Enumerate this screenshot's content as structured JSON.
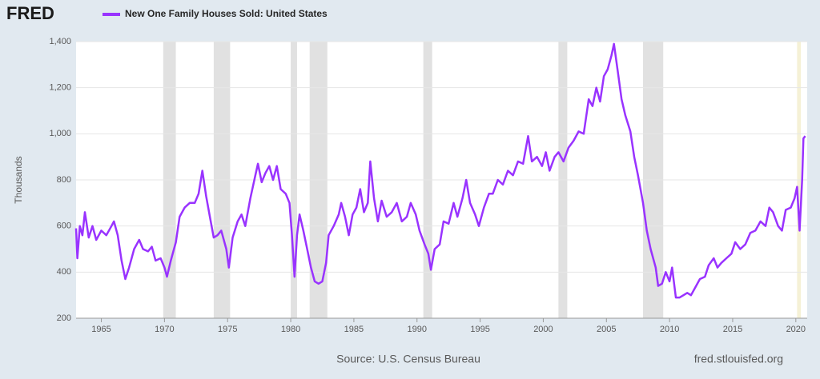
{
  "logo": "FRED",
  "chart_data": {
    "type": "line",
    "title": "New One Family Houses Sold: United States",
    "y_label": "Thousands",
    "source": "Source: U.S. Census Bureau",
    "site": "fred.stlouisfed.org",
    "xlim": [
      1963,
      2020.9
    ],
    "xticks": [
      1965,
      1970,
      1975,
      1980,
      1985,
      1990,
      1995,
      2000,
      2005,
      2010,
      2015,
      2020
    ],
    "ylim": [
      200,
      1400
    ],
    "yticks": [
      200,
      400,
      600,
      800,
      {
        "value": 1000,
        "label": "1,000"
      },
      {
        "value": 1200,
        "label": "1,200"
      },
      {
        "value": 1400,
        "label": "1,400"
      }
    ],
    "grid": true,
    "recession_color": "#e1e1e1",
    "recessions": [
      {
        "start": 1969.9,
        "end": 1970.9
      },
      {
        "start": 1973.9,
        "end": 1975.2
      },
      {
        "start": 1980.0,
        "end": 1980.5
      },
      {
        "start": 1981.5,
        "end": 1982.9
      },
      {
        "start": 1990.5,
        "end": 1991.2
      },
      {
        "start": 2001.2,
        "end": 2001.9
      },
      {
        "start": 2007.9,
        "end": 2009.5
      },
      {
        "start": 2020.1,
        "end": 2020.4,
        "color": "#f5f1d6"
      }
    ],
    "x": [
      1963.0,
      1963.1,
      1963.3,
      1963.5,
      1963.7,
      1964.0,
      1964.3,
      1964.6,
      1965.0,
      1965.4,
      1965.8,
      1966.0,
      1966.3,
      1966.6,
      1966.9,
      1967.2,
      1967.6,
      1968.0,
      1968.3,
      1968.7,
      1969.0,
      1969.3,
      1969.7,
      1970.0,
      1970.2,
      1970.5,
      1970.9,
      1971.2,
      1971.6,
      1972.0,
      1972.4,
      1972.7,
      1973.0,
      1973.3,
      1973.6,
      1973.9,
      1974.2,
      1974.5,
      1974.9,
      1975.1,
      1975.4,
      1975.8,
      1976.1,
      1976.4,
      1976.8,
      1977.2,
      1977.4,
      1977.7,
      1978.0,
      1978.3,
      1978.6,
      1978.9,
      1979.2,
      1979.6,
      1979.9,
      1980.1,
      1980.3,
      1980.5,
      1980.7,
      1981.0,
      1981.3,
      1981.6,
      1981.9,
      1982.2,
      1982.5,
      1982.8,
      1983.0,
      1983.4,
      1983.8,
      1984.0,
      1984.3,
      1984.6,
      1984.9,
      1985.2,
      1985.5,
      1985.8,
      1986.1,
      1986.3,
      1986.6,
      1986.9,
      1987.2,
      1987.6,
      1988.0,
      1988.4,
      1988.8,
      1989.2,
      1989.5,
      1989.9,
      1990.2,
      1990.6,
      1990.9,
      1991.1,
      1991.4,
      1991.8,
      1992.1,
      1992.5,
      1992.9,
      1993.2,
      1993.6,
      1993.9,
      1994.2,
      1994.6,
      1994.9,
      1995.3,
      1995.7,
      1996.0,
      1996.4,
      1996.8,
      1997.2,
      1997.6,
      1998.0,
      1998.4,
      1998.8,
      1999.1,
      1999.5,
      1999.9,
      2000.2,
      2000.5,
      2000.9,
      2001.2,
      2001.6,
      2002.0,
      2002.4,
      2002.8,
      2003.2,
      2003.6,
      2003.9,
      2004.2,
      2004.5,
      2004.8,
      2005.1,
      2005.4,
      2005.6,
      2005.9,
      2006.2,
      2006.5,
      2006.9,
      2007.2,
      2007.5,
      2007.9,
      2008.2,
      2008.5,
      2008.9,
      2009.1,
      2009.4,
      2009.7,
      2010.0,
      2010.2,
      2010.5,
      2010.8,
      2011.1,
      2011.4,
      2011.7,
      2012.0,
      2012.4,
      2012.8,
      2013.1,
      2013.5,
      2013.8,
      2014.1,
      2014.5,
      2014.9,
      2015.2,
      2015.6,
      2016.0,
      2016.4,
      2016.8,
      2017.2,
      2017.6,
      2017.9,
      2018.2,
      2018.6,
      2018.9,
      2019.2,
      2019.6,
      2019.9,
      2020.1,
      2020.3,
      2020.5,
      2020.6,
      2020.75
    ],
    "series": [
      {
        "name": "New One Family Houses Sold: United States",
        "color": "#9933ff",
        "values": [
          590,
          460,
          600,
          560,
          660,
          550,
          600,
          540,
          580,
          560,
          600,
          620,
          560,
          450,
          370,
          420,
          500,
          540,
          500,
          490,
          510,
          450,
          460,
          420,
          380,
          450,
          530,
          640,
          680,
          700,
          700,
          740,
          840,
          730,
          640,
          550,
          560,
          580,
          500,
          420,
          550,
          620,
          650,
          600,
          720,
          820,
          870,
          790,
          830,
          860,
          800,
          860,
          760,
          740,
          700,
          560,
          380,
          560,
          650,
          580,
          500,
          420,
          360,
          350,
          360,
          440,
          560,
          600,
          650,
          700,
          640,
          560,
          650,
          680,
          760,
          660,
          700,
          880,
          720,
          620,
          710,
          640,
          660,
          700,
          620,
          640,
          700,
          650,
          580,
          520,
          480,
          410,
          500,
          520,
          620,
          610,
          700,
          640,
          720,
          800,
          700,
          650,
          600,
          680,
          740,
          740,
          800,
          780,
          840,
          820,
          880,
          870,
          990,
          880,
          900,
          860,
          920,
          840,
          900,
          920,
          880,
          940,
          970,
          1010,
          1000,
          1150,
          1120,
          1200,
          1140,
          1250,
          1280,
          1340,
          1390,
          1270,
          1150,
          1080,
          1010,
          900,
          820,
          700,
          580,
          500,
          420,
          340,
          350,
          400,
          360,
          420,
          290,
          290,
          300,
          310,
          300,
          330,
          370,
          380,
          430,
          460,
          420,
          440,
          460,
          480,
          530,
          500,
          520,
          570,
          580,
          620,
          600,
          680,
          660,
          600,
          580,
          670,
          680,
          720,
          770,
          580,
          800,
          980,
          990
        ]
      }
    ]
  }
}
